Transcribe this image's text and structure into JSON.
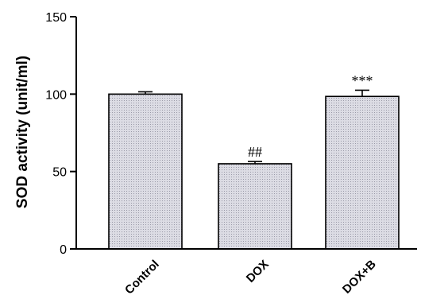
{
  "chart_data": {
    "type": "bar",
    "title": "",
    "xlabel": "",
    "ylabel": "SOD activity (unit/ml)",
    "ylim": [
      0,
      150
    ],
    "yticks": [
      0,
      50,
      100,
      150
    ],
    "grid": false,
    "categories": [
      "Control",
      "DOX",
      "DOX+B"
    ],
    "values": [
      100,
      55,
      98.5
    ],
    "errors": [
      1.5,
      1.5,
      4
    ],
    "annotations": [
      "",
      "##",
      "***"
    ],
    "bar_color": "#d9d9e2",
    "bar_pattern": "dotted"
  }
}
